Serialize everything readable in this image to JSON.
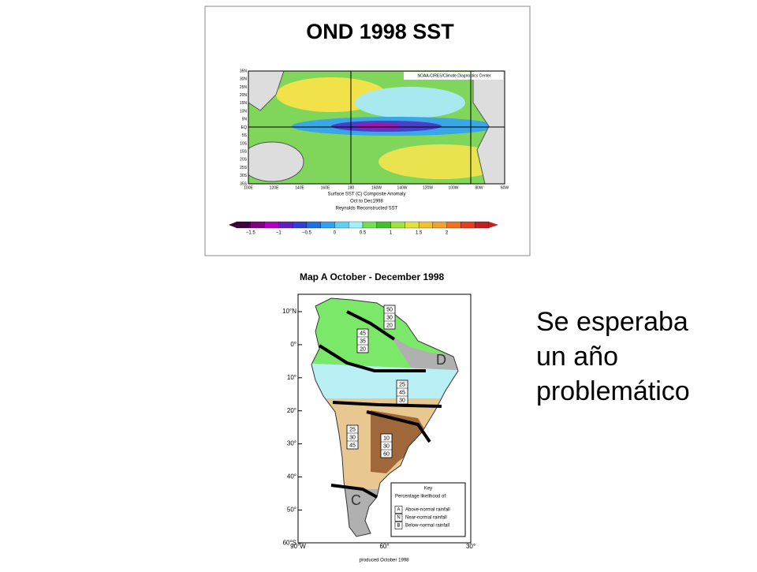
{
  "slide_text": [
    "Se esperaba",
    "un año",
    "problemático"
  ],
  "sst_map": {
    "title": "OND 1998 SST",
    "credit": "NOAA-CIRES/Climate Diagnostics Center",
    "lat_labels": [
      "35N",
      "30N",
      "25N",
      "20N",
      "15N",
      "10N",
      "5N",
      "EQ",
      "5S",
      "10S",
      "15S",
      "20S",
      "25S",
      "30S",
      "35S"
    ],
    "lon_labels": [
      "100E",
      "120E",
      "140E",
      "160E",
      "180",
      "160W",
      "140W",
      "120W",
      "100W",
      "80W",
      "60W"
    ],
    "caption": [
      "Surface SST (C) Composite Anomaly",
      "Oct to Dec1998",
      "Reynolds Reconstructed SST"
    ],
    "colorbar_ticks": [
      "−1.5",
      "−1",
      "−0.5",
      "0",
      "0.5",
      "1",
      "1.5",
      "2"
    ]
  },
  "rainfall_map": {
    "title": "Map A  October - December  1998",
    "lat_labels": [
      "10°N",
      "0°",
      "10°",
      "20°",
      "30°",
      "40°",
      "50°",
      "60°S"
    ],
    "lon_labels": [
      "90°W",
      "60°",
      "30°"
    ],
    "boxes": [
      [
        "50",
        "30",
        "20"
      ],
      [
        "45",
        "35",
        "20"
      ],
      [
        "25",
        "45",
        "30"
      ],
      [
        "25",
        "30",
        "45"
      ],
      [
        "10",
        "30",
        "60"
      ]
    ],
    "zones": [
      "D",
      "C"
    ],
    "key": {
      "title": "Key",
      "subtitle": "Percentage likelihood of:",
      "items": [
        {
          "letter": "A",
          "text": "Above-normal rainfall"
        },
        {
          "letter": "N",
          "text": "Near-normal rainfall"
        },
        {
          "letter": "B",
          "text": "Below-normal rainfall"
        }
      ]
    },
    "footer": "produced October 1998"
  }
}
